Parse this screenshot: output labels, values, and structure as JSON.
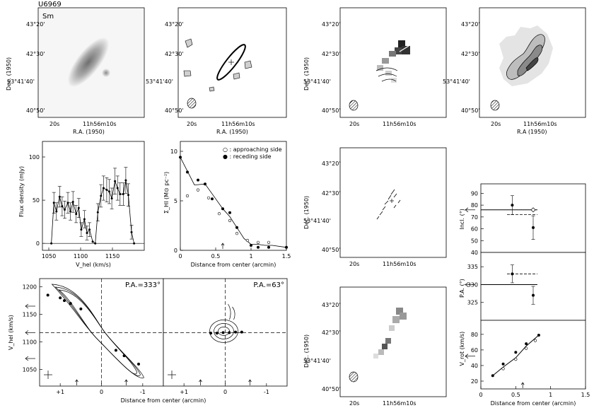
{
  "galaxy_id": "U6969",
  "morph_type": "Sm",
  "maps": {
    "ra_label": "R.A. (1950)",
    "ra_label_alt": "R.A (1950)",
    "dec_label": "Dec. (1950)",
    "ra_ticks": [
      "20s",
      "11h56m10s"
    ],
    "dec_ticks": [
      "43°20'",
      "42°30'",
      "53°41'40'",
      "40°50'"
    ]
  },
  "chart_data": [
    {
      "type": "line",
      "id": "global-profile",
      "xlabel": "V_hel (km/s)",
      "ylabel": "Flux density (mJy)",
      "xlim": [
        1040,
        1200
      ],
      "ylim": [
        -8,
        118
      ],
      "xticks": [
        1050,
        1100,
        1150
      ],
      "yticks": [
        0,
        50,
        100
      ],
      "x": [
        1054,
        1058,
        1062,
        1067,
        1071,
        1075,
        1080,
        1084,
        1088,
        1093,
        1097,
        1101,
        1106,
        1110,
        1114,
        1119,
        1123,
        1127,
        1132,
        1136,
        1141,
        1145,
        1149,
        1154,
        1158,
        1162,
        1167,
        1171,
        1175,
        1180,
        1184
      ],
      "y": [
        0,
        47,
        37,
        54,
        43,
        39,
        47,
        37,
        48,
        34,
        41,
        16,
        28,
        12,
        16,
        2,
        0,
        36,
        55,
        64,
        62,
        60,
        52,
        72,
        64,
        57,
        57,
        73,
        56,
        13,
        0
      ],
      "errors": [
        0,
        12,
        10,
        12,
        11,
        10,
        12,
        10,
        12,
        10,
        11,
        8,
        10,
        8,
        8,
        0,
        0,
        10,
        13,
        14,
        14,
        14,
        12,
        15,
        14,
        13,
        13,
        15,
        13,
        8,
        0
      ]
    },
    {
      "type": "scatter",
      "id": "surface-density",
      "xlabel": "Distance from center (arcmin)",
      "ylabel": "Σ_HI (M⊙ pc⁻²)",
      "xlim": [
        0,
        1.5
      ],
      "ylim": [
        0,
        11
      ],
      "xticks": [
        0,
        0.5,
        1,
        1.5
      ],
      "yticks": [
        0,
        5,
        10
      ],
      "legend": [
        "○ : approaching side",
        "● : receding side"
      ],
      "legend_position": "top-right",
      "curve": {
        "x": [
          0,
          0.2,
          0.35,
          0.5,
          0.6,
          0.7,
          0.8,
          0.9,
          1.0,
          1.1,
          1.2,
          1.3,
          1.5
        ],
        "y": [
          9.4,
          6.6,
          6.7,
          5.2,
          4.2,
          3.4,
          2.3,
          1.2,
          0.6,
          0.6,
          0.5,
          0.5,
          0.3
        ]
      },
      "series": [
        {
          "name": "approaching side",
          "x": [
            0.1,
            0.25,
            0.4,
            0.55,
            0.7,
            0.8,
            0.95,
            1.1,
            1.25
          ],
          "y": [
            5.5,
            6.1,
            5.3,
            3.7,
            3.0,
            1.7,
            1.0,
            0.8,
            0.8
          ]
        },
        {
          "name": "receding side",
          "x": [
            0.0,
            0.1,
            0.25,
            0.35,
            0.45,
            0.6,
            0.7,
            0.8,
            1.0,
            1.1,
            1.25,
            1.5
          ],
          "y": [
            9.4,
            7.9,
            7.1,
            6.7,
            5.2,
            4.2,
            3.8,
            2.3,
            0.5,
            0.3,
            0.3,
            0.3
          ]
        }
      ],
      "arrow_x": 0.6
    },
    {
      "type": "scatter",
      "id": "inclination",
      "ylabel": "Incl. (°)",
      "xlim": [
        0,
        1.5
      ],
      "ylim": [
        40,
        98
      ],
      "yticks": [
        40,
        50,
        60,
        70,
        80,
        90
      ],
      "solid_line": 76,
      "dashed_line": 72,
      "points": [
        {
          "x": 0.45,
          "y": 80,
          "err": 8
        },
        {
          "x": 0.75,
          "y": 61,
          "err": 10
        }
      ],
      "diamond": {
        "x": 0.75,
        "y": 76
      }
    },
    {
      "type": "scatter",
      "id": "position-angle",
      "ylabel": "P.A. (°)",
      "xlim": [
        0,
        1.5
      ],
      "ylim": [
        320,
        339
      ],
      "yticks": [
        325,
        330,
        335
      ],
      "solid_line": 330,
      "dashed_line": 333,
      "points": [
        {
          "x": 0.45,
          "y": 333,
          "err": 2.5
        },
        {
          "x": 0.75,
          "y": 327,
          "err": 2.5
        }
      ]
    },
    {
      "type": "line",
      "id": "rotation-curve",
      "xlabel": "Distance from center (arcmin)",
      "ylabel": "V_rot (km/s)",
      "xlim": [
        0,
        1.5
      ],
      "ylim": [
        10,
        98
      ],
      "xticks": [
        0,
        0.5,
        1,
        1.5
      ],
      "xtick_labels": [
        "0",
        "0.5",
        "1",
        "1.5"
      ],
      "yticks": [
        20,
        40,
        60,
        80
      ],
      "x": [
        0.17,
        0.32,
        0.5,
        0.65,
        0.83
      ],
      "y": [
        27,
        38,
        50,
        65,
        79
      ],
      "series": [
        {
          "name": "filled",
          "x": [
            0.17,
            0.32,
            0.5,
            0.65,
            0.83
          ],
          "y": [
            27,
            42,
            57,
            68,
            79
          ]
        },
        {
          "name": "open",
          "x": [
            0.32,
            0.5,
            0.65,
            0.78
          ],
          "y": [
            36,
            48,
            62,
            72
          ]
        }
      ],
      "arrow_x": 0.6
    },
    {
      "type": "heatmap",
      "id": "pv-diagram-major",
      "label": "P.A.=333°",
      "xlabel": "Distance from center (arcmin)",
      "ylabel": "V_hel (km/s)",
      "xlim": [
        1.5,
        -1.5
      ],
      "ylim": [
        1020,
        1215
      ],
      "xticks": [
        1,
        0,
        -1
      ],
      "xtick_labels": [
        "+1",
        "0",
        "-1"
      ],
      "yticks": [
        1050,
        1100,
        1150,
        1200
      ],
      "vsys": 1117,
      "points_x": [
        1.3,
        1.0,
        0.9,
        0.75,
        0.5,
        -0.35,
        -0.55,
        -0.9
      ],
      "points_y": [
        1185,
        1180,
        1175,
        1170,
        1160,
        1085,
        1075,
        1060
      ]
    },
    {
      "type": "heatmap",
      "id": "pv-diagram-minor",
      "label": "P.A.=63°",
      "xlim": [
        1.5,
        -1.5
      ],
      "ylim": [
        1020,
        1215
      ],
      "xticks": [
        1,
        0,
        -1
      ],
      "xtick_labels": [
        "+1",
        "0",
        "-1"
      ],
      "vsys": 1117,
      "points_x": [
        -0.4,
        -0.25,
        -0.1,
        0.05,
        0.2,
        0.35
      ],
      "points_y": [
        1118,
        1118,
        1117,
        1117,
        1116,
        1116
      ]
    }
  ]
}
